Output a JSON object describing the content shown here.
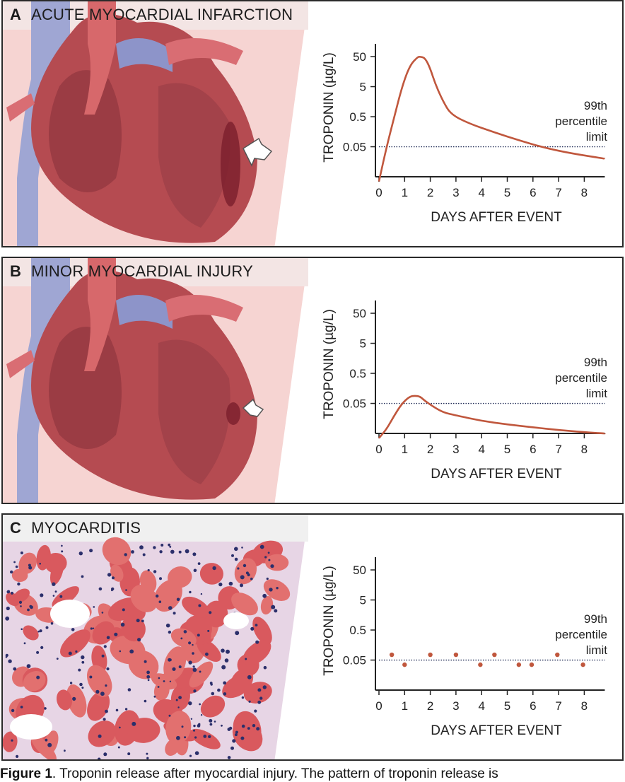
{
  "panels": [
    {
      "letter": "A",
      "title": "ACUTE MYOCARDIAL INFARCTION",
      "illustration": "heart-large-infarct"
    },
    {
      "letter": "B",
      "title": "MINOR MYOCARDIAL INJURY",
      "illustration": "heart-small-injury"
    },
    {
      "letter": "C",
      "title": "MYOCARDITIS",
      "illustration": "histology-micrograph"
    }
  ],
  "caption": {
    "bold": "Figure 1",
    "text": ". Troponin release after myocardial injury. The pattern of troponin release is"
  },
  "chart_data": [
    {
      "type": "line",
      "xlabel": "DAYS AFTER EVENT",
      "ylabel": "TROPONIN (µg/L)",
      "x_ticks": [
        0,
        1,
        2,
        3,
        4,
        5,
        6,
        7,
        8
      ],
      "y_ticks": [
        "50",
        "5",
        "0.5",
        "0.05"
      ],
      "y_scale": "log",
      "xlim": [
        0,
        8.8
      ],
      "threshold": {
        "label": [
          "99th",
          "percentile",
          "limit"
        ],
        "value": 0.05,
        "style": "dotted"
      },
      "series": [
        {
          "color": "#c0573d",
          "x": [
            0,
            0.3,
            0.6,
            0.9,
            1.2,
            1.5,
            1.6,
            1.8,
            2.0,
            2.2,
            2.5,
            2.8,
            3.5,
            4.5,
            5.5,
            6.5,
            7.5,
            8.8
          ],
          "y": [
            0.0035,
            0.05,
            0.5,
            5,
            25,
            48,
            50,
            45,
            20,
            6,
            1.6,
            0.6,
            0.3,
            0.15,
            0.08,
            0.045,
            0.03,
            0.02
          ]
        }
      ]
    },
    {
      "type": "line",
      "xlabel": "DAYS AFTER EVENT",
      "ylabel": "TROPONIN (µg/L)",
      "x_ticks": [
        0,
        1,
        2,
        3,
        4,
        5,
        6,
        7,
        8
      ],
      "y_ticks": [
        "50",
        "5",
        "0.5",
        "0.05"
      ],
      "y_scale": "log",
      "xlim": [
        0,
        8.8
      ],
      "threshold": {
        "label": [
          "99th",
          "percentile",
          "limit"
        ],
        "value": 0.05,
        "style": "dotted"
      },
      "series": [
        {
          "color": "#c0573d",
          "x": [
            0,
            0.3,
            0.6,
            0.9,
            1.2,
            1.4,
            1.6,
            1.8,
            2.1,
            2.5,
            3.0,
            4.0,
            5.0,
            6.0,
            7.0,
            8.0,
            8.8
          ],
          "y": [
            0.0035,
            0.007,
            0.02,
            0.05,
            0.085,
            0.09,
            0.085,
            0.06,
            0.04,
            0.025,
            0.02,
            0.013,
            0.01,
            0.008,
            0.0065,
            0.0055,
            0.005
          ]
        }
      ]
    },
    {
      "type": "scatter",
      "xlabel": "DAYS AFTER EVENT",
      "ylabel": "TROPONIN (µg/L)",
      "x_ticks": [
        0,
        1,
        2,
        3,
        4,
        5,
        6,
        7,
        8
      ],
      "y_ticks": [
        "50",
        "5",
        "0.5",
        "0.05"
      ],
      "y_scale": "log",
      "xlim": [
        0,
        8.8
      ],
      "threshold": {
        "label": [
          "99th",
          "percentile",
          "limit"
        ],
        "value": 0.05,
        "style": "dotted"
      },
      "series": [
        {
          "color": "#c0573d",
          "x": [
            0.5,
            1.0,
            2.0,
            3.0,
            3.95,
            4.5,
            5.45,
            5.95,
            6.95,
            7.95
          ],
          "y": [
            0.075,
            0.035,
            0.075,
            0.075,
            0.035,
            0.075,
            0.035,
            0.035,
            0.075,
            0.035
          ]
        }
      ]
    }
  ]
}
